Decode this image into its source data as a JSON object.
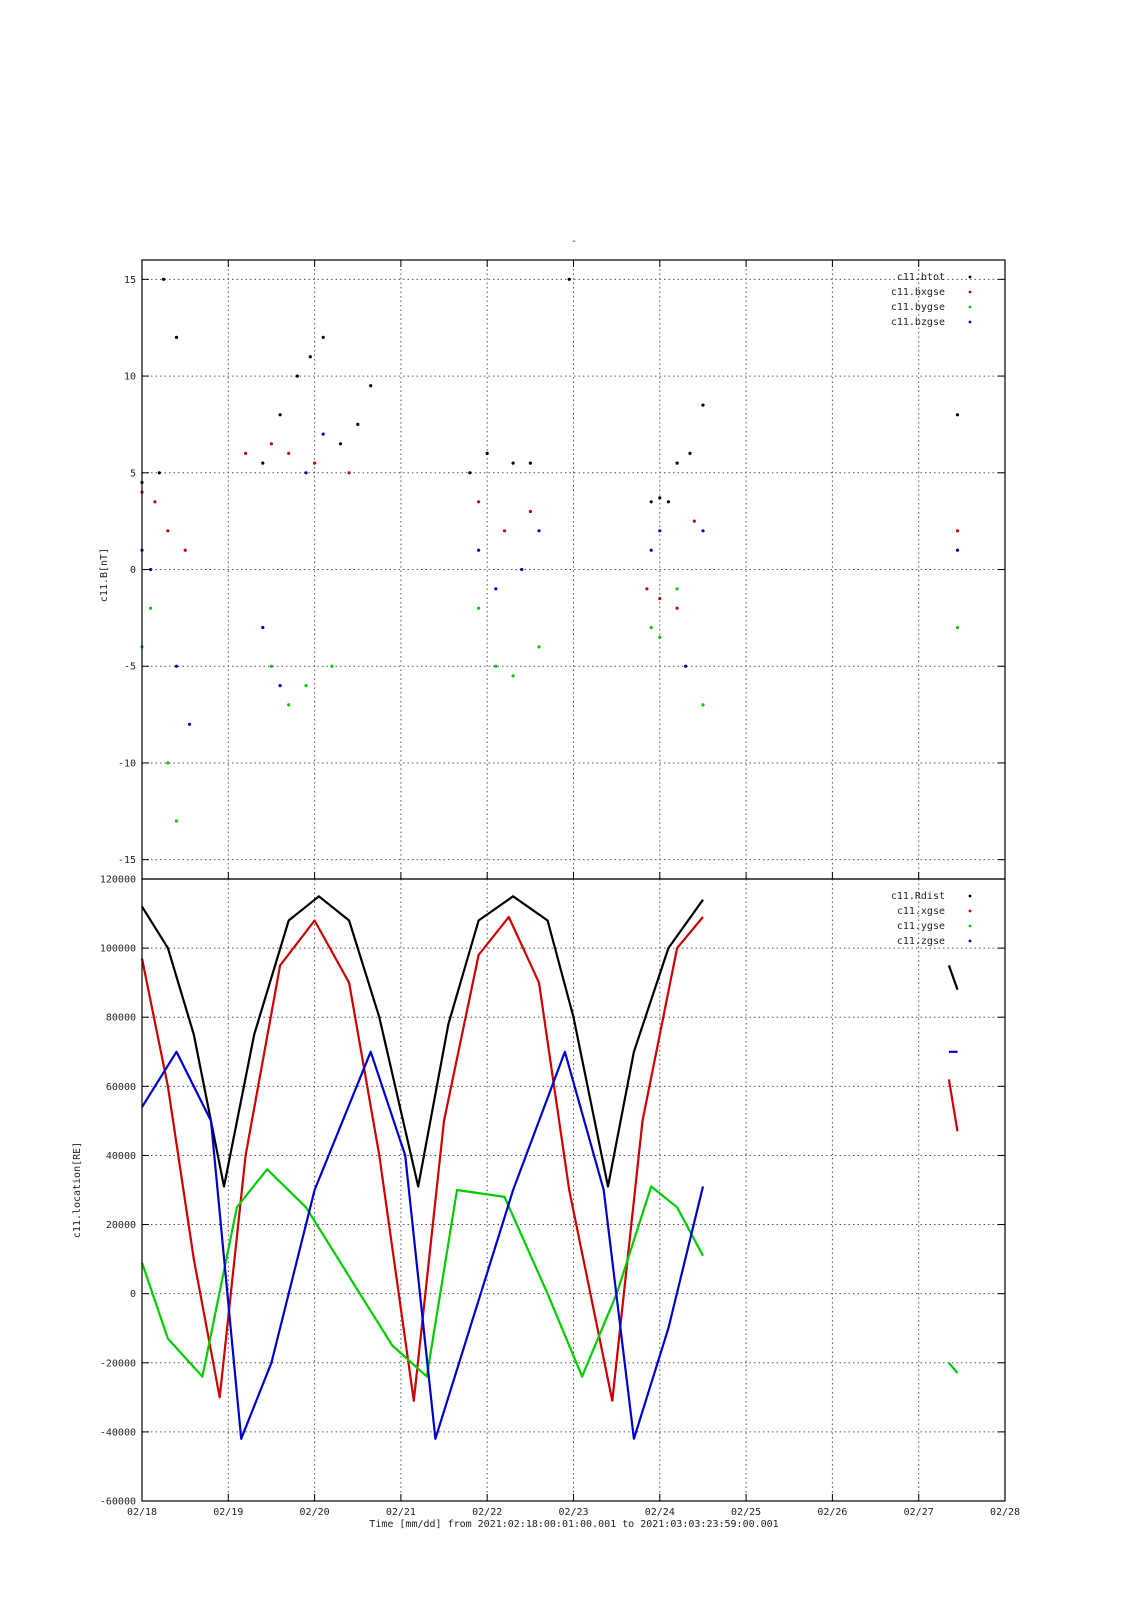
{
  "figure": {
    "top_title": "-",
    "footer": "Time [mm/dd]  from 2021:02:18:00:01:00.001  to  2021:03:03:23:59:00.001"
  },
  "x_axis": {
    "ticks": [
      "02/18",
      "02/19",
      "02/20",
      "02/21",
      "02/22",
      "02/23",
      "02/24",
      "02/25",
      "02/26",
      "02/27",
      "02/28"
    ],
    "range_days": [
      0,
      10
    ]
  },
  "chart_data": [
    {
      "type": "scatter",
      "ylabel": "c11.B[nT]",
      "ylim": [
        -16,
        16
      ],
      "yticks": [
        -15,
        -10,
        -5,
        0,
        5,
        10,
        15
      ],
      "grid": true,
      "legend_position": "top-right",
      "legend": [
        "c11.btot",
        "c11.bxgse",
        "c11.bygse",
        "c11.bzgse"
      ],
      "colors": [
        "#000000",
        "#cc0000",
        "#00cc00",
        "#0000cc"
      ],
      "series": [
        {
          "name": "c11.btot",
          "x": [
            0.0,
            0.2,
            0.25,
            0.4,
            1.4,
            1.6,
            1.8,
            1.95,
            2.1,
            2.3,
            2.5,
            2.65,
            3.8,
            4.0,
            4.3,
            4.5,
            4.95,
            5.9,
            6.0,
            6.1,
            6.2,
            6.35,
            6.5,
            9.45
          ],
          "y": [
            4.5,
            5.0,
            15.0,
            12.0,
            5.5,
            8.0,
            10.0,
            11.0,
            12.0,
            6.5,
            7.5,
            9.5,
            5.0,
            6.0,
            5.5,
            5.5,
            15.0,
            3.5,
            3.7,
            3.5,
            5.5,
            6.0,
            8.5,
            8.0
          ]
        },
        {
          "name": "c11.bxgse",
          "x": [
            0.0,
            0.15,
            0.3,
            0.5,
            1.2,
            1.5,
            1.7,
            2.0,
            2.4,
            3.9,
            4.2,
            4.5,
            5.85,
            6.0,
            6.2,
            6.4,
            9.45
          ],
          "y": [
            4.0,
            3.5,
            2.0,
            1.0,
            6.0,
            6.5,
            6.0,
            5.5,
            5.0,
            3.5,
            2.0,
            3.0,
            -1.0,
            -1.5,
            -2.0,
            2.5,
            2.0
          ]
        },
        {
          "name": "c11.bygse",
          "x": [
            0.0,
            0.1,
            0.3,
            0.4,
            1.5,
            1.7,
            1.9,
            2.2,
            3.9,
            4.1,
            4.3,
            4.6,
            5.9,
            6.0,
            6.2,
            6.5,
            9.45
          ],
          "y": [
            -4.0,
            -2.0,
            -10.0,
            -13.0,
            -5.0,
            -7.0,
            -6.0,
            -5.0,
            -2.0,
            -5.0,
            -5.5,
            -4.0,
            -3.0,
            -3.5,
            -1.0,
            -7.0,
            -3.0
          ]
        },
        {
          "name": "c11.bzgse",
          "x": [
            0.0,
            0.1,
            0.4,
            0.55,
            1.4,
            1.6,
            1.9,
            2.1,
            3.9,
            4.1,
            4.4,
            4.6,
            5.9,
            6.0,
            6.3,
            6.5,
            9.45
          ],
          "y": [
            1.0,
            0.0,
            -5.0,
            -8.0,
            -3.0,
            -6.0,
            5.0,
            7.0,
            1.0,
            -1.0,
            0.0,
            2.0,
            1.0,
            2.0,
            -5.0,
            2.0,
            1.0
          ]
        }
      ]
    },
    {
      "type": "line",
      "ylabel": "c11.location[RE]",
      "ylim": [
        -60000,
        120000
      ],
      "yticks": [
        -60000,
        -40000,
        -20000,
        0,
        20000,
        40000,
        60000,
        80000,
        100000,
        120000
      ],
      "grid": true,
      "legend_position": "top-right",
      "legend": [
        "c11.Rdist",
        "c11.xgse",
        "c11.ygse",
        "c11.zgse"
      ],
      "colors": [
        "#000000",
        "#cc0000",
        "#00cc00",
        "#0000cc"
      ],
      "series": [
        {
          "name": "c11.Rdist",
          "x": [
            0.0,
            0.3,
            0.6,
            0.95,
            1.3,
            1.7,
            2.05,
            2.4,
            2.75,
            3.2,
            3.55,
            3.9,
            4.3,
            4.7,
            5.0,
            5.4,
            5.7,
            6.1,
            6.5
          ],
          "y": [
            112000,
            100000,
            75000,
            31000,
            75000,
            108000,
            115000,
            108000,
            80000,
            31000,
            78000,
            108000,
            115000,
            108000,
            80000,
            31000,
            70000,
            100000,
            114000
          ],
          "x2": [
            9.35,
            9.45
          ],
          "y2": [
            95000,
            88000
          ]
        },
        {
          "name": "c11.xgse",
          "x": [
            0.0,
            0.3,
            0.6,
            0.9,
            1.2,
            1.6,
            2.0,
            2.4,
            2.75,
            3.15,
            3.5,
            3.9,
            4.25,
            4.6,
            4.95,
            5.45,
            5.8,
            6.2,
            6.5
          ],
          "y": [
            97000,
            60000,
            10000,
            -30000,
            40000,
            95000,
            108000,
            90000,
            40000,
            -31000,
            50000,
            98000,
            109000,
            90000,
            30000,
            -31000,
            50000,
            100000,
            109000
          ],
          "x2": [
            9.35,
            9.45
          ],
          "y2": [
            62000,
            47000
          ]
        },
        {
          "name": "c11.ygse",
          "x": [
            0.0,
            0.3,
            0.7,
            1.1,
            1.45,
            1.9,
            2.4,
            2.9,
            3.3,
            3.65,
            4.2,
            4.7,
            5.1,
            5.5,
            5.9,
            6.2,
            6.5
          ],
          "y": [
            9000,
            -13000,
            -24000,
            25000,
            36000,
            25000,
            5000,
            -15000,
            -24000,
            30000,
            28000,
            0,
            -24000,
            0,
            31000,
            25000,
            11000
          ],
          "x2": [
            9.35,
            9.45
          ],
          "y2": [
            -20000,
            -23000
          ]
        },
        {
          "name": "c11.zgse",
          "x": [
            0.0,
            0.4,
            0.8,
            1.15,
            1.5,
            2.0,
            2.65,
            3.05,
            3.4,
            3.8,
            4.3,
            4.9,
            5.35,
            5.7,
            6.1,
            6.5
          ],
          "y": [
            54000,
            70000,
            50000,
            -42000,
            -20000,
            30000,
            70000,
            40000,
            -42000,
            -10000,
            30000,
            70000,
            30000,
            -42000,
            -10000,
            31000
          ],
          "x2": [
            9.35,
            9.45
          ],
          "y2": [
            70000,
            70000
          ]
        }
      ]
    }
  ]
}
